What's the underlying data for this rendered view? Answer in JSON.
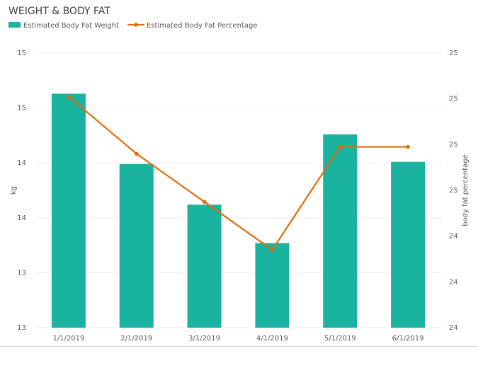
{
  "chart_data": {
    "type": "combo",
    "title": "WEIGHT & BODY FAT",
    "categories": [
      "1/1/2019",
      "2/1/2019",
      "3/1/2019",
      "4/1/2019",
      "5/1/2019",
      "6/1/2019"
    ],
    "series": [
      {
        "name": "Estimated Body Fat Weight",
        "type": "bar",
        "color": "#1ab3a0",
        "values": [
          14.63,
          13.99,
          13.62,
          13.27,
          14.26,
          14.01
        ]
      },
      {
        "name": "Estimated Body Fat Percentage",
        "type": "line",
        "axis": "y2",
        "color": "#e36c0a",
        "values": [
          25.01,
          24.76,
          24.55,
          24.34,
          24.79,
          24.79
        ]
      }
    ],
    "ylabel": "kg",
    "y2label": "body fat percentage",
    "ylim": [
      12.5,
      15.0
    ],
    "yticks": [
      {
        "value": 12.5,
        "label": "13"
      },
      13,
      {
        "value": 13.5,
        "label": "14"
      },
      14,
      {
        "value": 14.5,
        "label": "15"
      },
      15
    ],
    "y2lim": [
      24.0,
      25.2
    ],
    "y2ticks": [
      24,
      {
        "value": 24.2,
        "label": "24"
      },
      {
        "value": 24.4,
        "label": "24"
      },
      {
        "value": 24.6,
        "label": "25"
      },
      {
        "value": 24.8,
        "label": "25"
      },
      25,
      {
        "value": 25.2,
        "label": "25"
      }
    ],
    "grid": true,
    "legend": "top-left"
  }
}
